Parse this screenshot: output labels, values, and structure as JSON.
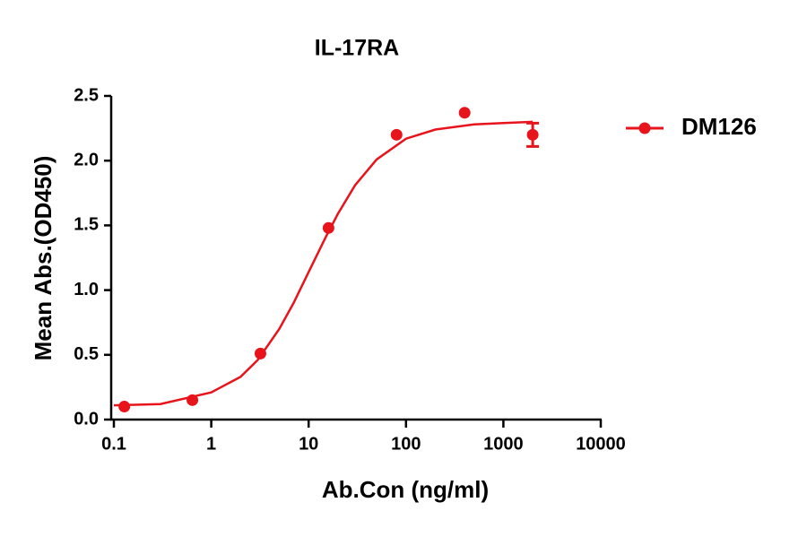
{
  "chart_data": {
    "type": "scatter",
    "title": "IL-17RA",
    "xlabel": "Ab.Con (ng/ml)",
    "ylabel": "Mean Abs.(OD450)",
    "xscale": "log",
    "xlim": [
      0.1,
      10000
    ],
    "xticks": [
      0.1,
      1,
      10,
      100,
      1000,
      10000
    ],
    "ylim": [
      0,
      2.5
    ],
    "yticks": [
      {
        "value": 0,
        "label": "0.0"
      },
      0.5,
      {
        "value": 1,
        "label": "1.0"
      },
      1.5,
      {
        "value": 2,
        "label": "2.0"
      },
      2.5
    ],
    "series": [
      {
        "name": "DM126",
        "color": "#e8141b",
        "x": [
          0.128,
          0.64,
          3.2,
          16,
          80,
          400,
          2000
        ],
        "values": [
          0.1,
          0.15,
          0.51,
          1.48,
          2.2,
          2.37,
          2.2
        ],
        "errors": [
          null,
          null,
          null,
          null,
          null,
          null,
          0.09
        ]
      }
    ],
    "curve": {
      "color": "#e8141b",
      "x": [
        0.1,
        0.3,
        1,
        2,
        3,
        5,
        7,
        10,
        15,
        20,
        30,
        50,
        100,
        200,
        500,
        1000,
        2000
      ],
      "values": [
        0.11,
        0.12,
        0.21,
        0.33,
        0.46,
        0.7,
        0.9,
        1.14,
        1.41,
        1.59,
        1.81,
        2.01,
        2.17,
        2.24,
        2.28,
        2.29,
        2.3
      ]
    },
    "legend": "right"
  }
}
